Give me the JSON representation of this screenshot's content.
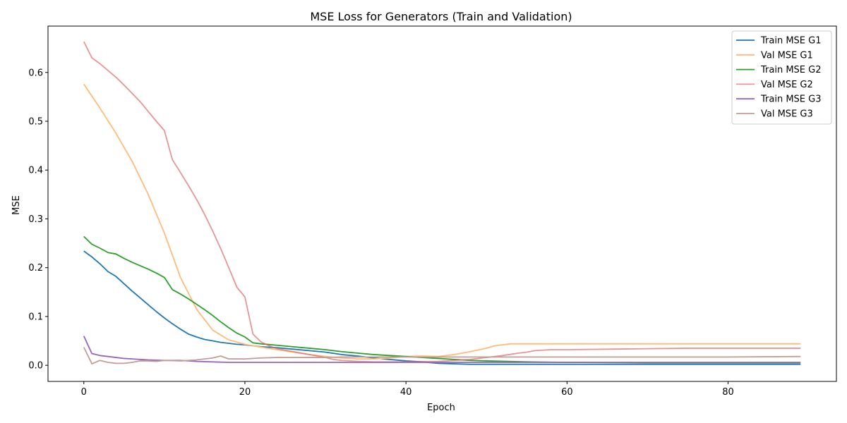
{
  "chart_data": {
    "type": "line",
    "title": "MSE Loss for Generators (Train and Validation)",
    "xlabel": "Epoch",
    "ylabel": "MSE",
    "xlim": [
      -4.45,
      93.45
    ],
    "ylim": [
      -0.033,
      0.695
    ],
    "xticks": [
      0,
      20,
      40,
      60,
      80
    ],
    "yticks": [
      0.0,
      0.1,
      0.2,
      0.3,
      0.4,
      0.5,
      0.6
    ],
    "ytick_labels": [
      "0.0",
      "0.1",
      "0.2",
      "0.3",
      "0.4",
      "0.5",
      "0.6"
    ],
    "xtick_labels": [
      "0",
      "20",
      "40",
      "60",
      "80"
    ],
    "grid": false,
    "legend_position": "top-right",
    "series": [
      {
        "name": "Train MSE G1",
        "color": "#1f77b4",
        "alpha": 1.0,
        "points": [
          [
            0,
            0.234
          ],
          [
            1,
            0.222
          ],
          [
            2,
            0.208
          ],
          [
            3,
            0.192
          ],
          [
            4,
            0.182
          ],
          [
            5,
            0.167
          ],
          [
            6,
            0.152
          ],
          [
            7,
            0.138
          ],
          [
            8,
            0.124
          ],
          [
            9,
            0.11
          ],
          [
            10,
            0.097
          ],
          [
            11,
            0.085
          ],
          [
            12,
            0.074
          ],
          [
            13,
            0.064
          ],
          [
            14,
            0.058
          ],
          [
            15,
            0.053
          ],
          [
            16,
            0.05
          ],
          [
            17,
            0.047
          ],
          [
            18,
            0.045
          ],
          [
            19,
            0.043
          ],
          [
            20,
            0.042
          ],
          [
            22,
            0.038
          ],
          [
            24,
            0.036
          ],
          [
            26,
            0.033
          ],
          [
            28,
            0.03
          ],
          [
            30,
            0.027
          ],
          [
            32,
            0.022
          ],
          [
            34,
            0.019
          ],
          [
            36,
            0.015
          ],
          [
            38,
            0.012
          ],
          [
            40,
            0.009
          ],
          [
            42,
            0.007
          ],
          [
            44,
            0.004
          ],
          [
            46,
            0.003
          ],
          [
            48,
            0.002
          ],
          [
            50,
            0.002
          ],
          [
            55,
            0.002
          ],
          [
            60,
            0.002
          ],
          [
            70,
            0.002
          ],
          [
            80,
            0.002
          ],
          [
            89,
            0.002
          ]
        ]
      },
      {
        "name": "Val MSE G1",
        "color": "#ffbb78",
        "alpha": 1.0,
        "points": [
          [
            0,
            0.576
          ],
          [
            2,
            0.527
          ],
          [
            4,
            0.475
          ],
          [
            6,
            0.418
          ],
          [
            8,
            0.35
          ],
          [
            10,
            0.271
          ],
          [
            12,
            0.18
          ],
          [
            14,
            0.115
          ],
          [
            16,
            0.072
          ],
          [
            18,
            0.052
          ],
          [
            20,
            0.043
          ],
          [
            22,
            0.037
          ],
          [
            24,
            0.032
          ],
          [
            26,
            0.027
          ],
          [
            28,
            0.022
          ],
          [
            30,
            0.018
          ],
          [
            32,
            0.015
          ],
          [
            34,
            0.013
          ],
          [
            36,
            0.013
          ],
          [
            38,
            0.015
          ],
          [
            40,
            0.018
          ],
          [
            42,
            0.019
          ],
          [
            44,
            0.018
          ],
          [
            46,
            0.022
          ],
          [
            48,
            0.028
          ],
          [
            50,
            0.035
          ],
          [
            51,
            0.04
          ],
          [
            53,
            0.044
          ],
          [
            55,
            0.044
          ],
          [
            60,
            0.044
          ],
          [
            70,
            0.044
          ],
          [
            80,
            0.044
          ],
          [
            89,
            0.044
          ]
        ]
      },
      {
        "name": "Train MSE G2",
        "color": "#2ca02c",
        "alpha": 1.0,
        "points": [
          [
            0,
            0.264
          ],
          [
            1,
            0.248
          ],
          [
            2,
            0.24
          ],
          [
            3,
            0.231
          ],
          [
            4,
            0.228
          ],
          [
            5,
            0.219
          ],
          [
            6,
            0.211
          ],
          [
            7,
            0.204
          ],
          [
            8,
            0.197
          ],
          [
            9,
            0.189
          ],
          [
            10,
            0.18
          ],
          [
            11,
            0.155
          ],
          [
            12,
            0.146
          ],
          [
            13,
            0.136
          ],
          [
            14,
            0.125
          ],
          [
            15,
            0.114
          ],
          [
            16,
            0.102
          ],
          [
            17,
            0.089
          ],
          [
            18,
            0.077
          ],
          [
            19,
            0.066
          ],
          [
            20,
            0.058
          ],
          [
            21,
            0.046
          ],
          [
            22,
            0.044
          ],
          [
            24,
            0.041
          ],
          [
            26,
            0.038
          ],
          [
            28,
            0.035
          ],
          [
            30,
            0.032
          ],
          [
            32,
            0.028
          ],
          [
            34,
            0.025
          ],
          [
            36,
            0.022
          ],
          [
            38,
            0.02
          ],
          [
            40,
            0.018
          ],
          [
            42,
            0.016
          ],
          [
            44,
            0.014
          ],
          [
            46,
            0.012
          ],
          [
            48,
            0.01
          ],
          [
            50,
            0.009
          ],
          [
            55,
            0.007
          ],
          [
            60,
            0.006
          ],
          [
            70,
            0.005
          ],
          [
            80,
            0.005
          ],
          [
            89,
            0.005
          ]
        ]
      },
      {
        "name": "Val MSE G2",
        "color": "#e06666",
        "alpha": 0.7,
        "points": [
          [
            0,
            0.663
          ],
          [
            1,
            0.63
          ],
          [
            2,
            0.618
          ],
          [
            3,
            0.604
          ],
          [
            4,
            0.59
          ],
          [
            5,
            0.574
          ],
          [
            6,
            0.557
          ],
          [
            7,
            0.54
          ],
          [
            8,
            0.52
          ],
          [
            9,
            0.5
          ],
          [
            10,
            0.481
          ],
          [
            11,
            0.421
          ],
          [
            12,
            0.395
          ],
          [
            13,
            0.368
          ],
          [
            14,
            0.34
          ],
          [
            15,
            0.309
          ],
          [
            16,
            0.275
          ],
          [
            17,
            0.239
          ],
          [
            18,
            0.2
          ],
          [
            19,
            0.16
          ],
          [
            20,
            0.14
          ],
          [
            21,
            0.064
          ],
          [
            22,
            0.048
          ],
          [
            23,
            0.04
          ],
          [
            24,
            0.034
          ],
          [
            26,
            0.028
          ],
          [
            28,
            0.022
          ],
          [
            30,
            0.016
          ],
          [
            31,
            0.012
          ],
          [
            32,
            0.01
          ],
          [
            34,
            0.008
          ],
          [
            36,
            0.007
          ],
          [
            40,
            0.007
          ],
          [
            44,
            0.008
          ],
          [
            48,
            0.012
          ],
          [
            50,
            0.016
          ],
          [
            52,
            0.02
          ],
          [
            54,
            0.025
          ],
          [
            55,
            0.027
          ],
          [
            56,
            0.03
          ],
          [
            58,
            0.032
          ],
          [
            60,
            0.032
          ],
          [
            65,
            0.033
          ],
          [
            70,
            0.034
          ],
          [
            75,
            0.035
          ],
          [
            80,
            0.035
          ],
          [
            89,
            0.035
          ]
        ]
      },
      {
        "name": "Train MSE G3",
        "color": "#9467bd",
        "alpha": 1.0,
        "points": [
          [
            0,
            0.06
          ],
          [
            1,
            0.024
          ],
          [
            2,
            0.02
          ],
          [
            3,
            0.018
          ],
          [
            4,
            0.016
          ],
          [
            5,
            0.014
          ],
          [
            6,
            0.013
          ],
          [
            8,
            0.011
          ],
          [
            10,
            0.01
          ],
          [
            12,
            0.01
          ],
          [
            14,
            0.008
          ],
          [
            16,
            0.007
          ],
          [
            18,
            0.006
          ],
          [
            20,
            0.006
          ],
          [
            22,
            0.006
          ],
          [
            24,
            0.006
          ],
          [
            26,
            0.006
          ],
          [
            28,
            0.006
          ],
          [
            30,
            0.006
          ],
          [
            35,
            0.006
          ],
          [
            40,
            0.006
          ],
          [
            45,
            0.006
          ],
          [
            50,
            0.006
          ],
          [
            55,
            0.006
          ],
          [
            60,
            0.006
          ],
          [
            70,
            0.006
          ],
          [
            80,
            0.006
          ],
          [
            89,
            0.006
          ]
        ]
      },
      {
        "name": "Val MSE G3",
        "color": "#c49c94",
        "alpha": 1.0,
        "points": [
          [
            0,
            0.037
          ],
          [
            1,
            0.003
          ],
          [
            2,
            0.01
          ],
          [
            3,
            0.006
          ],
          [
            4,
            0.004
          ],
          [
            5,
            0.004
          ],
          [
            6,
            0.006
          ],
          [
            7,
            0.009
          ],
          [
            8,
            0.009
          ],
          [
            9,
            0.008
          ],
          [
            10,
            0.01
          ],
          [
            12,
            0.009
          ],
          [
            14,
            0.011
          ],
          [
            15,
            0.013
          ],
          [
            16,
            0.015
          ],
          [
            17,
            0.019
          ],
          [
            18,
            0.013
          ],
          [
            20,
            0.013
          ],
          [
            22,
            0.015
          ],
          [
            24,
            0.016
          ],
          [
            26,
            0.016
          ],
          [
            28,
            0.016
          ],
          [
            30,
            0.016
          ],
          [
            32,
            0.017
          ],
          [
            35,
            0.017
          ],
          [
            40,
            0.017
          ],
          [
            45,
            0.017
          ],
          [
            50,
            0.017
          ],
          [
            55,
            0.017
          ],
          [
            60,
            0.017
          ],
          [
            70,
            0.017
          ],
          [
            80,
            0.017
          ],
          [
            89,
            0.018
          ]
        ]
      }
    ]
  }
}
